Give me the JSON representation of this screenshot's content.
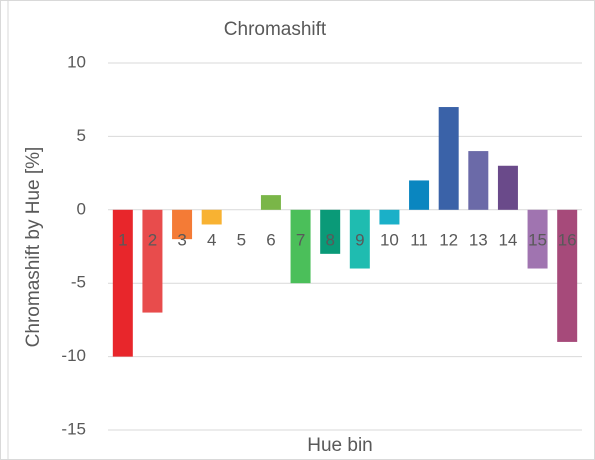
{
  "chart_data": {
    "type": "bar",
    "title": "Chromashift",
    "x_label": "Hue bin",
    "y_label": "Chromashift by Hue [%]",
    "categories": [
      "1",
      "2",
      "3",
      "4",
      "5",
      "6",
      "7",
      "8",
      "9",
      "10",
      "11",
      "12",
      "13",
      "14",
      "15",
      "16"
    ],
    "values": [
      -10,
      -7,
      -2,
      -1,
      0,
      1,
      -5,
      -3,
      -4,
      -1,
      2,
      7,
      4,
      3,
      -4,
      -9
    ],
    "colors": [
      "#e8262b",
      "#e84c4c",
      "#f47b36",
      "#f8b232",
      "#c8c040",
      "#7ab648",
      "#4bbf5a",
      "#0a9a78",
      "#1fbcb0",
      "#1ab0c8",
      "#0a86c0",
      "#3a62a8",
      "#6b6aa8",
      "#6a4a8a",
      "#a074b0",
      "#a64a7a"
    ],
    "ylim": [
      -15,
      10
    ],
    "yticks": [
      -15,
      -10,
      -5,
      0,
      5,
      10
    ],
    "grid": true
  }
}
